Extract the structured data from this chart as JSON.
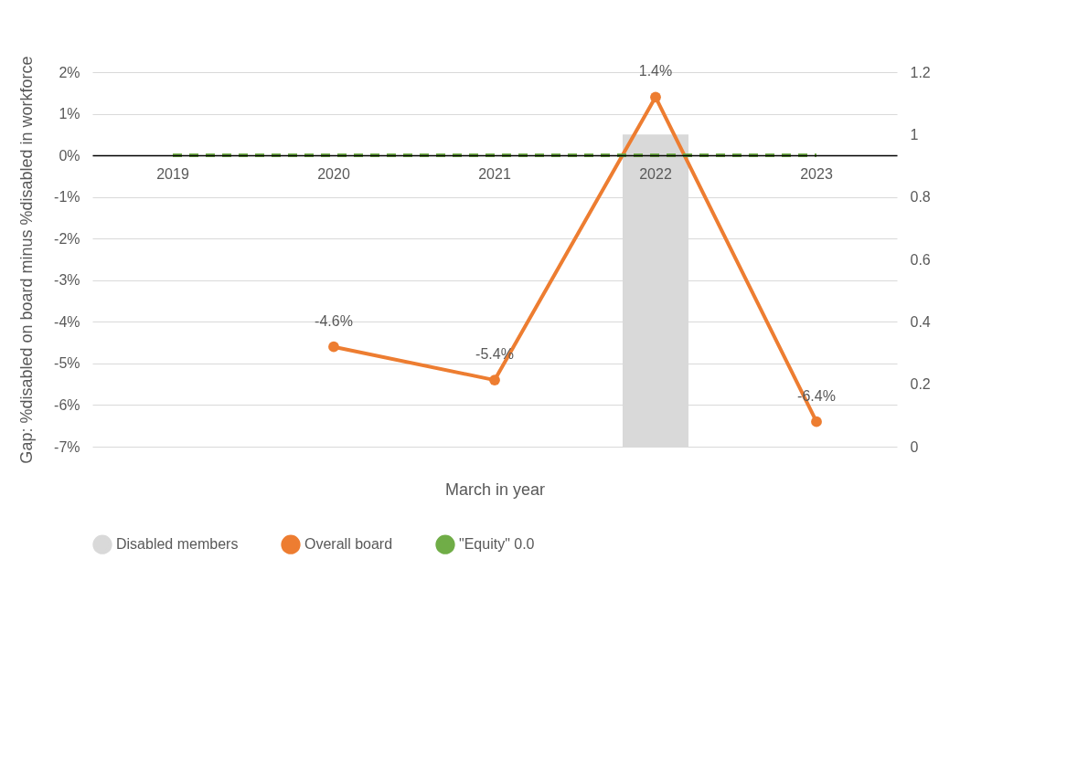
{
  "chart_data": {
    "type": "line",
    "ylabel": "Gap: %disabled on board minus %disabled in workforce",
    "xlabel": "March in year",
    "categories": [
      "2019",
      "2020",
      "2021",
      "2022",
      "2023"
    ],
    "series": [
      {
        "name": "Disabled members",
        "type": "bar",
        "axis": "y2",
        "color": "#d9d9d9",
        "values": [
          null,
          null,
          null,
          1,
          null
        ]
      },
      {
        "name": "Overall board",
        "color": "#ed7d31",
        "marker": "circle",
        "line_style": "solid",
        "values": [
          null,
          -4.6,
          -5.4,
          1.4,
          -6.4
        ],
        "value_labels": [
          null,
          "-4.6%",
          "-5.4%",
          "1.4%",
          "-6.4%"
        ]
      },
      {
        "name": "\"Equity\" 0.0",
        "color": "#70ad47",
        "marker": "none",
        "line_style": "dashed",
        "values": [
          0,
          0,
          0,
          0,
          0
        ]
      }
    ],
    "ylim": [
      -7,
      2
    ],
    "yticks": [
      {
        "value": -7,
        "label": "-7%"
      },
      {
        "value": -6,
        "label": "-6%"
      },
      {
        "value": -5,
        "label": "-5%"
      },
      {
        "value": -4,
        "label": "-4%"
      },
      {
        "value": -3,
        "label": "-3%"
      },
      {
        "value": -2,
        "label": "-2%"
      },
      {
        "value": -1,
        "label": "-1%"
      },
      {
        "value": 0,
        "label": "0%"
      },
      {
        "value": 1,
        "label": "1%"
      },
      {
        "value": 2,
        "label": "2%"
      }
    ],
    "y2lim": [
      0,
      1.2
    ],
    "y2ticks": [
      0,
      0.2,
      0.4,
      0.6,
      0.8,
      1,
      1.2
    ],
    "grid": "y",
    "legend": "bottom"
  }
}
